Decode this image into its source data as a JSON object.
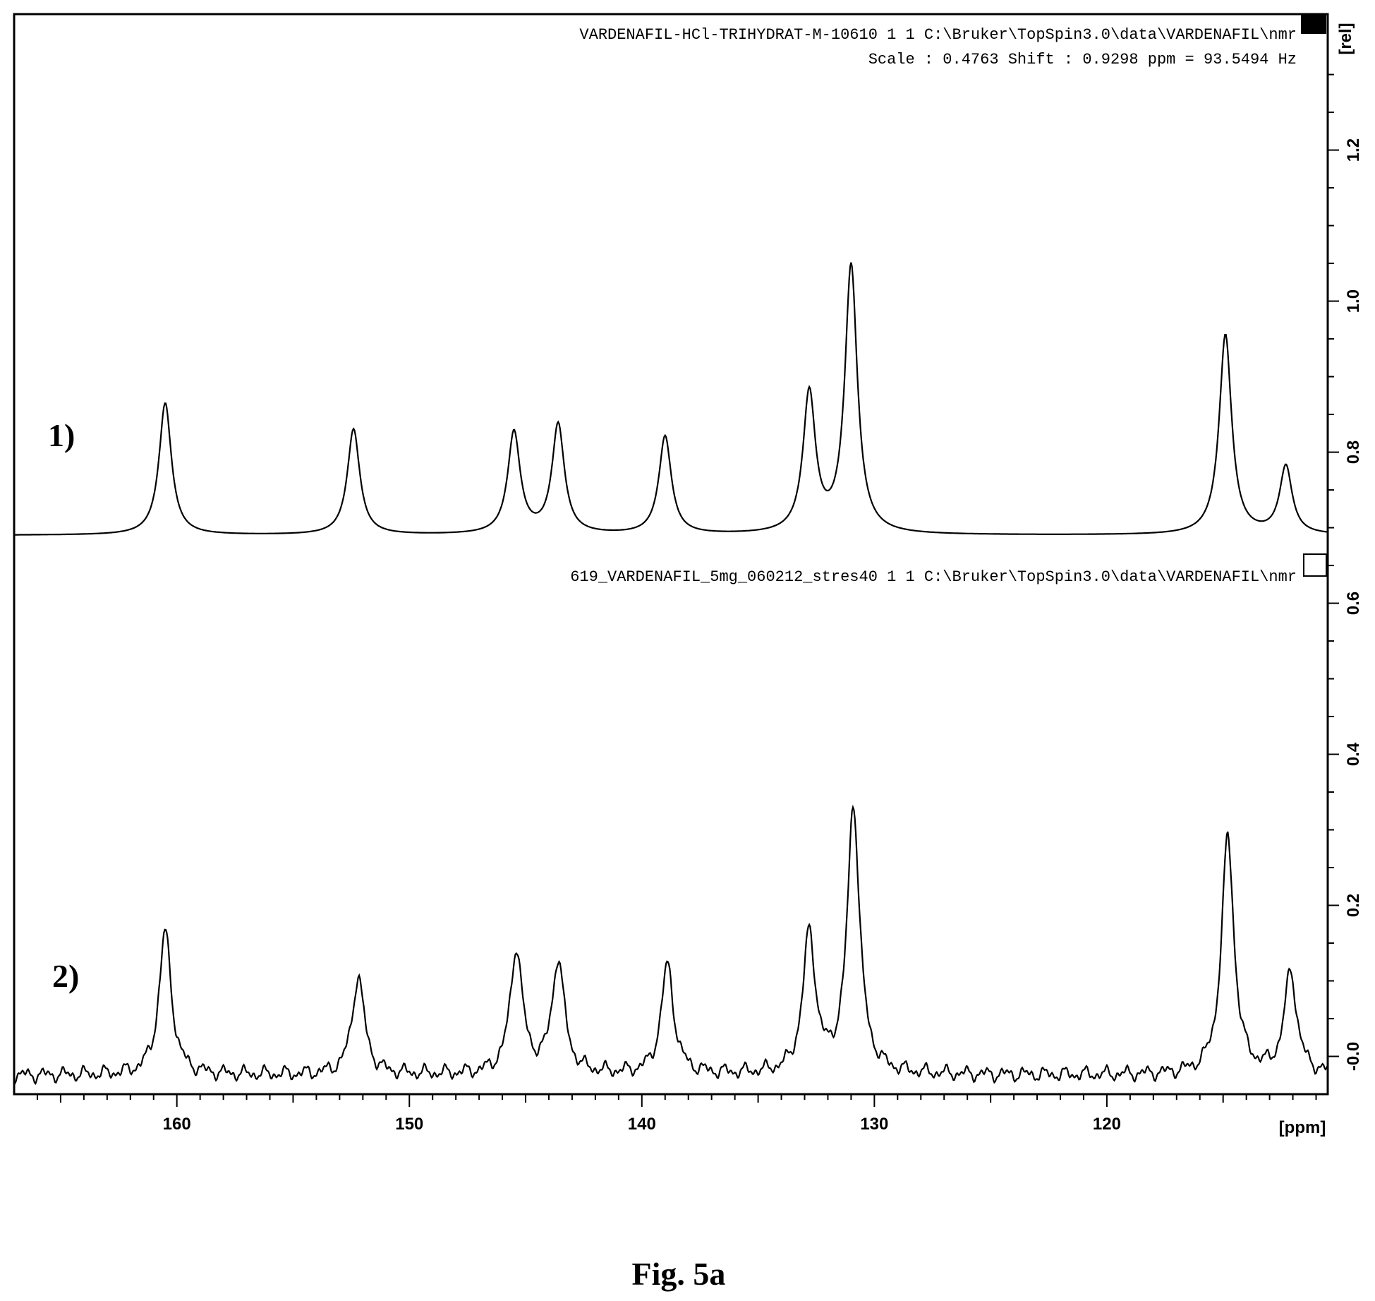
{
  "figure_caption": "Fig. 5a",
  "spectra": [
    {
      "label": "1)",
      "header_line1": "VARDENAFIL-HCl-TRIHYDRAT-M-10610   1   1  C:\\Bruker\\TopSpin3.0\\data\\VARDENAFIL\\nmr",
      "header_line2": "Scale : 0.4763 Shift : 0.9298 ppm = 93.5494 Hz"
    },
    {
      "label": "2)",
      "header_line1": "619_VARDENAFIL_5mg_060212_stres40   1   1  C:\\Bruker\\TopSpin3.0\\data\\VARDENAFIL\\nmr"
    }
  ],
  "chart_data": {
    "type": "line",
    "xlabel": "[ppm]",
    "ylabel": "[rel]",
    "x_reversed": true,
    "xlim": [
      167,
      110.5
    ],
    "ylim": [
      -0.05,
      1.38
    ],
    "x_ticks": [
      160,
      150,
      140,
      130,
      120
    ],
    "y_ticks": [
      -0.0,
      0.2,
      0.4,
      0.6,
      0.8,
      1.0,
      1.2
    ],
    "y_tick_labels": [
      "-0.0",
      "0.2",
      "0.4",
      "0.6",
      "0.8",
      "1.0",
      "1.2"
    ],
    "series": [
      {
        "name": "1)",
        "baseline": 0.69,
        "noise": 0.0,
        "peaks": [
          {
            "x": 160.5,
            "y": 0.865
          },
          {
            "x": 152.4,
            "y": 0.83
          },
          {
            "x": 145.5,
            "y": 0.825
          },
          {
            "x": 143.6,
            "y": 0.835
          },
          {
            "x": 139.0,
            "y": 0.82
          },
          {
            "x": 132.8,
            "y": 0.875
          },
          {
            "x": 131.0,
            "y": 1.045
          },
          {
            "x": 114.9,
            "y": 0.955
          },
          {
            "x": 112.3,
            "y": 0.78
          }
        ]
      },
      {
        "name": "2)",
        "baseline": -0.025,
        "noise": 0.012,
        "peaks": [
          {
            "x": 160.5,
            "y": 0.165
          },
          {
            "x": 152.2,
            "y": 0.105
          },
          {
            "x": 145.4,
            "y": 0.14
          },
          {
            "x": 143.6,
            "y": 0.125
          },
          {
            "x": 138.9,
            "y": 0.12
          },
          {
            "x": 132.8,
            "y": 0.16
          },
          {
            "x": 130.9,
            "y": 0.33
          },
          {
            "x": 114.8,
            "y": 0.29
          },
          {
            "x": 112.1,
            "y": 0.11
          }
        ]
      }
    ]
  }
}
